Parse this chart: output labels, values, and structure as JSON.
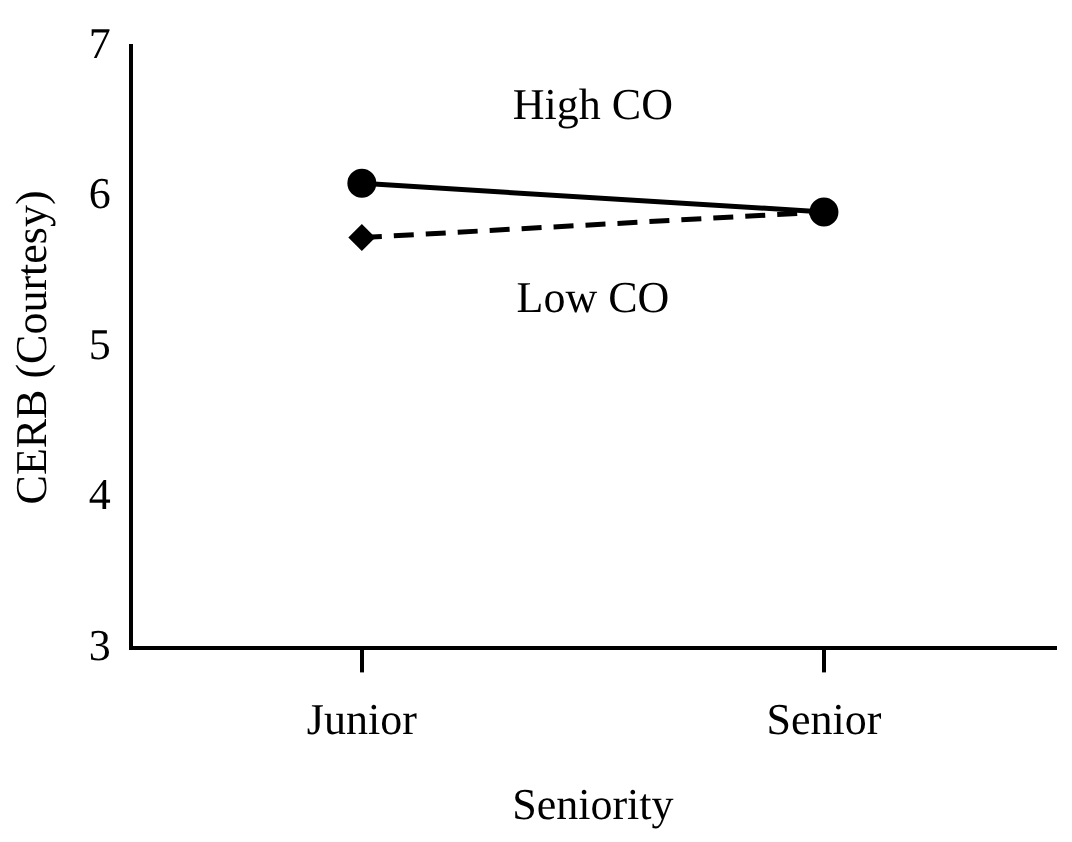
{
  "chart_data": {
    "type": "line",
    "xlabel": "Seniority",
    "ylabel": "CERB (Courtesy)",
    "categories": [
      "Junior",
      "Senior"
    ],
    "series": [
      {
        "name": "High CO",
        "color": "#000000",
        "values": [
          6.09,
          5.9
        ],
        "marker": "circle",
        "line_style": "solid"
      },
      {
        "name": "Low CO",
        "color": "#000000",
        "values": [
          5.73,
          5.9
        ],
        "marker": "diamond",
        "line_style": "dashed"
      }
    ],
    "ylim": [
      3,
      7
    ],
    "yticks": [
      3,
      4,
      5,
      6,
      7
    ],
    "grid": false,
    "legend": false
  }
}
